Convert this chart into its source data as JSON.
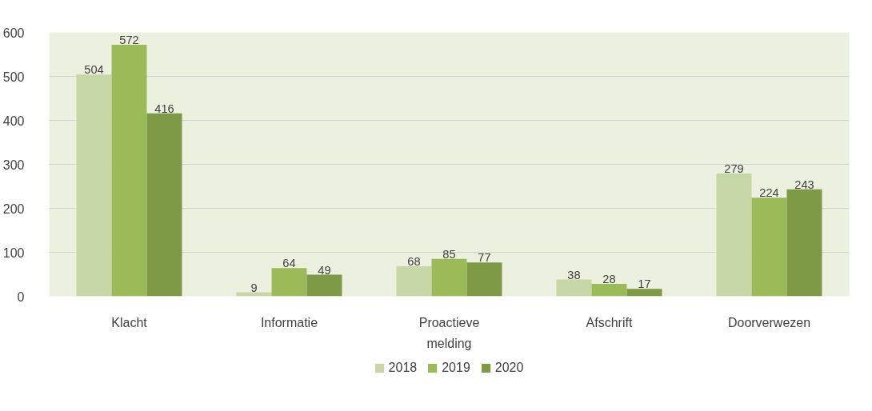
{
  "chart_data": {
    "type": "bar",
    "categories": [
      "Klacht",
      "Informatie",
      "Proactieve melding",
      "Afschrift",
      "Doorverwezen"
    ],
    "series": [
      {
        "name": "2018",
        "color": "#c6d6a6",
        "values": [
          504,
          9,
          68,
          38,
          279
        ]
      },
      {
        "name": "2019",
        "color": "#9bbb59",
        "values": [
          572,
          64,
          85,
          28,
          224
        ]
      },
      {
        "name": "2020",
        "color": "#7e9a47",
        "values": [
          416,
          49,
          77,
          17,
          243
        ]
      }
    ],
    "ylim": [
      0,
      600
    ],
    "yticks": [
      0,
      100,
      200,
      300,
      400,
      500,
      600
    ],
    "grid": "y",
    "legend": "bottom",
    "data_labels": true
  }
}
